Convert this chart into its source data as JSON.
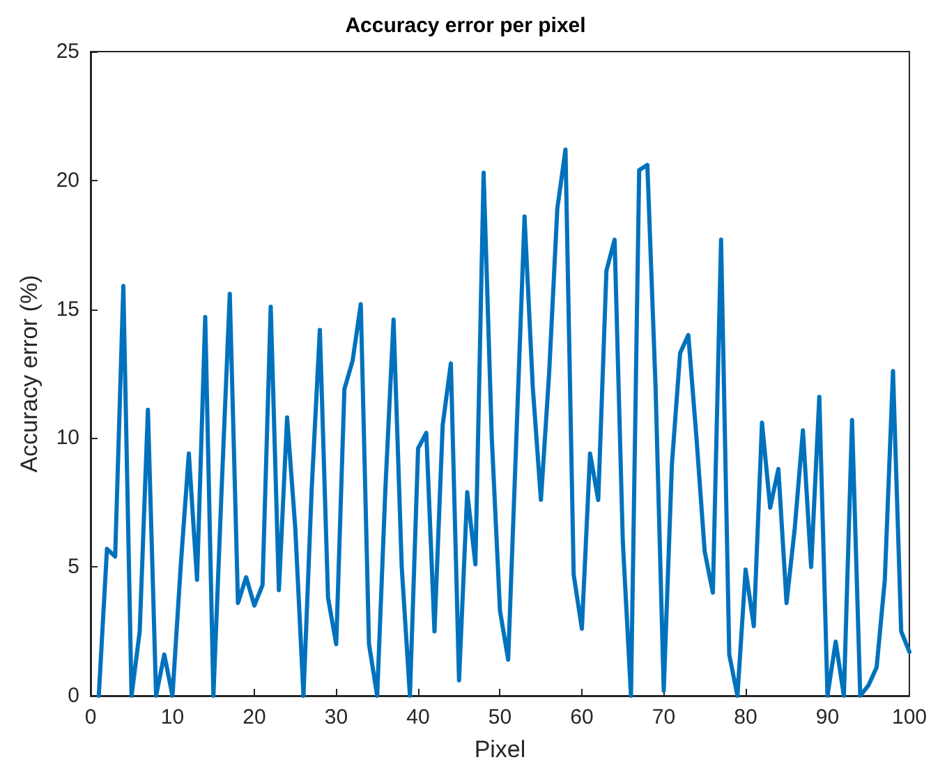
{
  "chart_data": {
    "type": "line",
    "title": "Accuracy error per pixel",
    "xlabel": "Pixel",
    "ylabel": "Accuracy error (%)",
    "x": [
      1,
      2,
      3,
      4,
      5,
      6,
      7,
      8,
      9,
      10,
      11,
      12,
      13,
      14,
      15,
      16,
      17,
      18,
      19,
      20,
      21,
      22,
      23,
      24,
      25,
      26,
      27,
      28,
      29,
      30,
      31,
      32,
      33,
      34,
      35,
      36,
      37,
      38,
      39,
      40,
      41,
      42,
      43,
      44,
      45,
      46,
      47,
      48,
      49,
      50,
      51,
      52,
      53,
      54,
      55,
      56,
      57,
      58,
      59,
      60,
      61,
      62,
      63,
      64,
      65,
      66,
      67,
      68,
      69,
      70,
      71,
      72,
      73,
      74,
      75,
      76,
      77,
      78,
      79,
      80,
      81,
      82,
      83,
      84,
      85,
      86,
      87,
      88,
      89,
      90,
      91,
      92,
      93,
      94,
      95,
      96,
      97,
      98,
      99,
      100
    ],
    "series": [
      {
        "color": "#0072bd",
        "values": [
          0,
          5.7,
          5.4,
          15.9,
          0,
          2.5,
          11.1,
          0,
          1.6,
          0,
          5,
          9.4,
          4.5,
          14.7,
          0,
          8,
          15.6,
          3.6,
          4.6,
          3.5,
          4.3,
          15.1,
          4.1,
          10.8,
          6.5,
          0,
          8,
          14.2,
          3.8,
          2,
          11.9,
          13,
          15.2,
          2,
          0,
          8,
          14.6,
          5,
          0,
          9.6,
          10.2,
          2.5,
          10.5,
          12.9,
          0.6,
          7.9,
          5.1,
          20.3,
          10,
          3.3,
          1.4,
          10,
          18.6,
          12,
          7.6,
          12.5,
          18.9,
          21.2,
          4.7,
          2.6,
          9.4,
          7.6,
          16.5,
          17.7,
          6,
          0,
          20.4,
          20.6,
          12,
          0.2,
          9,
          13.3,
          14,
          10,
          5.6,
          4,
          17.7,
          1.6,
          0,
          4.9,
          2.7,
          10.6,
          7.3,
          8.8,
          3.6,
          6.5,
          10.3,
          5,
          11.6,
          0,
          2.1,
          0,
          10.7,
          0,
          0.4,
          1.1,
          4.5,
          12.6,
          2.5,
          1.7
        ]
      }
    ],
    "xlim": [
      0,
      100
    ],
    "xticks": [
      0,
      10,
      20,
      30,
      40,
      50,
      60,
      70,
      80,
      90,
      100
    ],
    "ylim": [
      0,
      25
    ],
    "yticks": [
      0,
      5,
      10,
      15,
      20,
      25
    ],
    "grid": false,
    "marker": "none",
    "line_style": "solid"
  }
}
